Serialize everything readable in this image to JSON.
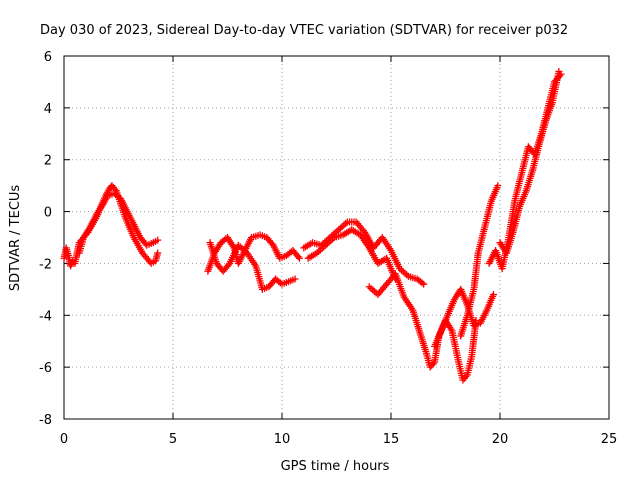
{
  "chart_data": {
    "type": "scatter",
    "title": "Day 030 of 2023, Sidereal Day-to-day VTEC variation (SDTVAR) for receiver p032",
    "xlabel": "GPS time / hours",
    "ylabel": "SDTVAR / TECUs",
    "xlim": [
      0,
      25
    ],
    "ylim": [
      -8,
      6
    ],
    "xticks": [
      0,
      5,
      10,
      15,
      20,
      25
    ],
    "yticks": [
      -8,
      -6,
      -4,
      -2,
      0,
      2,
      4,
      6
    ],
    "xtick_labels": [
      "0",
      "5",
      "10",
      "15",
      "20",
      "25"
    ],
    "ytick_labels": [
      "-8",
      "-6",
      "-4",
      "-2",
      "0",
      "2",
      "4",
      "6"
    ],
    "grid": true,
    "marker": "+",
    "color": "#ff0000",
    "series": [
      {
        "name": "seg-a",
        "x": [
          0.0,
          0.1,
          0.2,
          0.3,
          0.4
        ],
        "y": [
          -1.8,
          -1.4,
          -1.7,
          -2.1,
          -1.9
        ]
      },
      {
        "name": "seg-b",
        "x": [
          0.5,
          0.7,
          0.9,
          1.1,
          1.3,
          1.5,
          1.7,
          1.9,
          2.1,
          2.2,
          2.4,
          2.6,
          2.8,
          3.0,
          3.2,
          3.4,
          3.6,
          3.8,
          4.0,
          4.2,
          4.3
        ],
        "y": [
          -2.0,
          -1.2,
          -1.0,
          -0.8,
          -0.5,
          -0.2,
          0.2,
          0.6,
          0.9,
          1.0,
          0.8,
          0.3,
          -0.2,
          -0.6,
          -1.0,
          -1.3,
          -1.6,
          -1.8,
          -2.0,
          -1.9,
          -1.6
        ]
      },
      {
        "name": "seg-b2",
        "x": [
          0.7,
          0.9,
          1.2,
          1.5,
          1.8,
          2.0,
          2.3,
          2.6,
          2.9,
          3.2,
          3.5,
          3.8,
          4.1,
          4.3
        ],
        "y": [
          -1.6,
          -1.0,
          -0.6,
          -0.1,
          0.3,
          0.6,
          0.7,
          0.5,
          0.0,
          -0.5,
          -1.0,
          -1.3,
          -1.2,
          -1.1
        ]
      },
      {
        "name": "seg-c",
        "x": [
          6.6,
          6.9,
          7.2,
          7.5,
          7.8,
          8.0,
          8.3,
          8.6,
          9.0,
          9.3,
          9.6,
          9.9,
          10.2,
          10.5,
          10.8
        ],
        "y": [
          -2.3,
          -1.6,
          -1.2,
          -1.0,
          -1.4,
          -2.0,
          -1.5,
          -1.0,
          -0.9,
          -1.0,
          -1.3,
          -1.8,
          -1.7,
          -1.5,
          -1.8
        ]
      },
      {
        "name": "seg-c2",
        "x": [
          6.7,
          7.0,
          7.3,
          7.6,
          8.0,
          8.4,
          8.8,
          9.1,
          9.4,
          9.7,
          10.0,
          10.3,
          10.6
        ],
        "y": [
          -1.2,
          -2.0,
          -2.3,
          -2.0,
          -1.3,
          -1.6,
          -2.1,
          -3.0,
          -2.9,
          -2.6,
          -2.8,
          -2.7,
          -2.6
        ]
      },
      {
        "name": "seg-d",
        "x": [
          11.0,
          11.4,
          11.8,
          12.2,
          12.6,
          13.0,
          13.4,
          13.8,
          14.2,
          14.6,
          15.0,
          15.4,
          15.8,
          16.2,
          16.5
        ],
        "y": [
          -1.4,
          -1.2,
          -1.3,
          -1.0,
          -0.7,
          -0.4,
          -0.4,
          -0.8,
          -1.4,
          -1.0,
          -1.5,
          -2.2,
          -2.5,
          -2.6,
          -2.8
        ]
      },
      {
        "name": "seg-d2",
        "x": [
          11.2,
          11.6,
          12.0,
          12.4,
          12.8,
          13.2,
          13.6,
          14.0,
          14.4,
          14.8,
          15.2
        ],
        "y": [
          -1.8,
          -1.6,
          -1.3,
          -1.0,
          -0.9,
          -0.7,
          -0.9,
          -1.4,
          -2.0,
          -1.8,
          -2.6
        ]
      },
      {
        "name": "seg-e",
        "x": [
          14.0,
          14.4,
          14.8,
          15.2,
          15.6,
          16.0,
          16.3,
          16.6,
          16.8,
          17.0,
          17.2,
          17.5,
          17.8,
          18.1,
          18.3,
          18.5,
          18.7,
          18.9
        ],
        "y": [
          -2.9,
          -3.2,
          -2.8,
          -2.4,
          -3.3,
          -3.8,
          -4.6,
          -5.4,
          -6.0,
          -5.8,
          -4.8,
          -4.2,
          -4.6,
          -5.8,
          -6.5,
          -6.3,
          -5.6,
          -4.2
        ]
      },
      {
        "name": "seg-e2",
        "x": [
          17.0,
          17.3,
          17.6,
          17.9,
          18.2,
          18.5,
          18.8,
          19.1,
          19.4,
          19.7
        ],
        "y": [
          -5.2,
          -4.6,
          -4.0,
          -3.4,
          -3.0,
          -3.6,
          -4.4,
          -4.3,
          -3.8,
          -3.2
        ]
      },
      {
        "name": "seg-f",
        "x": [
          18.2,
          18.5,
          18.8,
          19.0,
          19.3,
          19.6,
          19.9
        ],
        "y": [
          -4.8,
          -4.0,
          -3.0,
          -1.6,
          -0.6,
          0.4,
          1.0
        ]
      },
      {
        "name": "seg-g",
        "x": [
          19.5,
          19.8,
          20.1,
          20.4,
          20.7,
          21.0,
          21.3,
          21.6,
          21.9,
          22.2,
          22.5,
          22.8
        ],
        "y": [
          -2.0,
          -1.5,
          -2.2,
          -1.0,
          0.5,
          1.5,
          2.5,
          2.2,
          3.0,
          4.0,
          5.0,
          5.3
        ]
      },
      {
        "name": "seg-g2",
        "x": [
          20.0,
          20.3,
          20.6,
          20.9,
          21.2,
          21.5,
          21.8,
          22.1,
          22.4,
          22.7
        ],
        "y": [
          -1.2,
          -1.6,
          -0.8,
          0.2,
          0.8,
          1.6,
          2.6,
          3.5,
          4.2,
          5.4
        ]
      }
    ]
  }
}
